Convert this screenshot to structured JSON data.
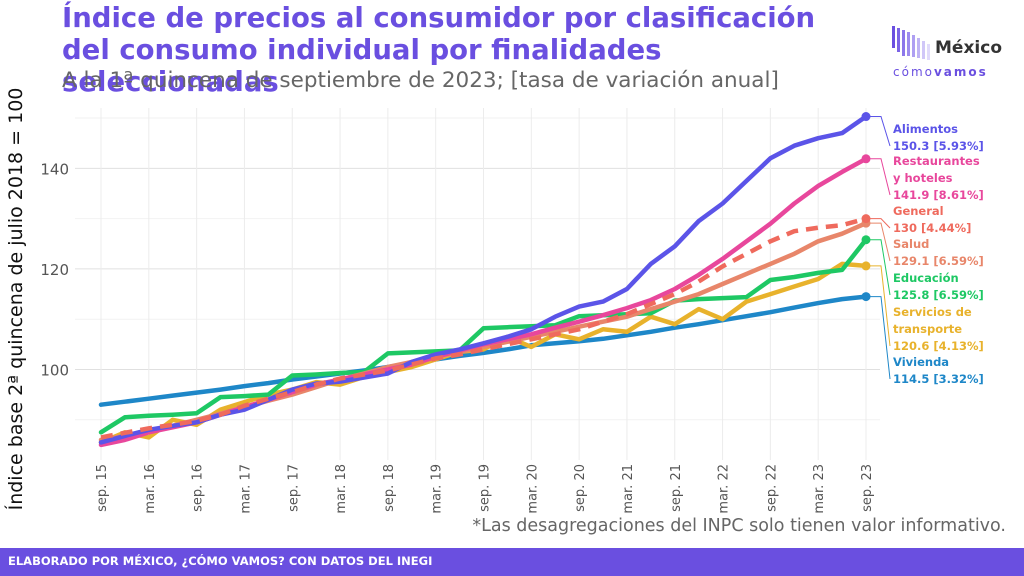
{
  "header": {
    "title": "Índice de precios al consumidor por clasificación del consumo individual por finalidades seleccionadas",
    "subtitle": "A la 1ª quincena de septiembre de 2023; [tasa de variación anual]"
  },
  "logo": {
    "name": "México",
    "sub_light": "cómo",
    "sub_bold": "vamos"
  },
  "footnote": "*Las desagregaciones del INPC solo tienen valor informativo.",
  "footer": {
    "text": "ELABORADO POR MÉXICO, ¿CÓMO VAMOS? CON DATOS DEL INEGI"
  },
  "chart_data": {
    "type": "line",
    "title": "Índice de precios al consumidor por clasificación del consumo individual por finalidades seleccionadas",
    "subtitle": "A la 1ª quincena de septiembre de 2023; [tasa de variación anual]",
    "ylabel": "Índice base 2ª quincena de julio 2018 = 100",
    "xlabel": "",
    "ylim": [
      82,
      152
    ],
    "yticks": [
      100,
      120,
      140
    ],
    "x_tick_labels": [
      "sep. 15",
      "mar. 16",
      "sep. 16",
      "mar. 17",
      "sep. 17",
      "mar. 18",
      "sep. 18",
      "mar. 19",
      "sep. 19",
      "mar. 20",
      "sep. 20",
      "mar. 21",
      "sep. 21",
      "mar. 22",
      "sep. 22",
      "mar. 23",
      "sep. 23"
    ],
    "grid": true,
    "legend": "end-labels-right",
    "x": [
      "sep. 15",
      "dic. 15",
      "mar. 16",
      "jun. 16",
      "sep. 16",
      "dic. 16",
      "mar. 17",
      "jun. 17",
      "sep. 17",
      "dic. 17",
      "mar. 18",
      "jun. 18",
      "sep. 18",
      "dic. 18",
      "mar. 19",
      "jun. 19",
      "sep. 19",
      "dic. 19",
      "mar. 20",
      "jun. 20",
      "sep. 20",
      "dic. 20",
      "mar. 21",
      "jun. 21",
      "sep. 21",
      "dic. 21",
      "mar. 22",
      "jun. 22",
      "sep. 22",
      "dic. 22",
      "mar. 23",
      "jun. 23",
      "sep. 23"
    ],
    "series": [
      {
        "name": "Alimentos",
        "end_label": "150.3 [5.93%]",
        "color": "#5b54e8",
        "dashed": false,
        "values": [
          85.5,
          86.8,
          88.0,
          88.8,
          89.5,
          91.0,
          92.0,
          94.0,
          96.0,
          97.2,
          97.6,
          98.4,
          99.2,
          101.5,
          103.0,
          104.0,
          105.2,
          106.5,
          108.0,
          110.5,
          112.5,
          113.5,
          116.0,
          121.0,
          124.5,
          129.5,
          133.0,
          137.5,
          142.0,
          144.5,
          146.0,
          147.0,
          150.3
        ]
      },
      {
        "name": "Restaurantes y hoteles",
        "end_label": "141.9 [8.61%]",
        "color": "#e8479c",
        "dashed": false,
        "values": [
          85.0,
          86.0,
          87.5,
          88.5,
          89.5,
          91.0,
          92.5,
          94.0,
          95.5,
          97.0,
          98.0,
          99.0,
          100.0,
          101.0,
          102.5,
          103.8,
          105.0,
          106.0,
          107.0,
          108.3,
          109.5,
          110.8,
          112.2,
          113.8,
          116.0,
          118.8,
          122.0,
          125.5,
          129.0,
          133.0,
          136.5,
          139.3,
          141.9
        ]
      },
      {
        "name": "General",
        "end_label": "130 [4.44%]",
        "color": "#ef6a5d",
        "dashed": true,
        "values": [
          86.5,
          87.4,
          88.3,
          89.0,
          89.8,
          91.0,
          92.8,
          94.2,
          95.5,
          97.0,
          98.2,
          99.0,
          99.8,
          101.0,
          102.2,
          103.0,
          104.0,
          105.0,
          106.0,
          107.0,
          108.0,
          109.5,
          111.0,
          113.0,
          115.0,
          117.5,
          120.5,
          123.0,
          125.5,
          127.5,
          128.2,
          128.7,
          130.0
        ]
      },
      {
        "name": "Salud",
        "end_label": "129.1 [6.59%]",
        "color": "#e8866a",
        "dashed": false,
        "values": [
          86.0,
          86.8,
          87.8,
          88.8,
          90.0,
          91.2,
          92.5,
          93.8,
          95.0,
          96.5,
          98.0,
          99.2,
          100.5,
          101.5,
          102.5,
          103.5,
          104.5,
          105.5,
          106.5,
          107.5,
          108.5,
          109.5,
          110.5,
          112.0,
          113.5,
          115.0,
          117.0,
          119.0,
          121.0,
          123.0,
          125.5,
          127.0,
          129.1
        ]
      },
      {
        "name": "Educación",
        "end_label": "125.8 [6.59%]",
        "color": "#1ec864",
        "dashed": false,
        "values": [
          87.5,
          90.5,
          90.8,
          91.0,
          91.3,
          94.5,
          94.7,
          95.0,
          98.8,
          99.0,
          99.3,
          99.5,
          103.2,
          103.4,
          103.6,
          103.8,
          108.2,
          108.4,
          108.6,
          108.8,
          110.6,
          110.8,
          111.0,
          111.2,
          113.7,
          114.0,
          114.2,
          114.4,
          117.8,
          118.4,
          119.2,
          119.8,
          125.8
        ]
      },
      {
        "name": "Servicios de transporte",
        "end_label": "120.6 [4.13%]",
        "color": "#e8b22c",
        "dashed": false,
        "values": [
          85.5,
          87.5,
          86.5,
          90.0,
          89.0,
          92.0,
          93.5,
          95.0,
          96.0,
          97.5,
          97.0,
          98.5,
          99.5,
          100.5,
          102.0,
          103.5,
          104.0,
          106.5,
          104.5,
          107.0,
          106.0,
          108.0,
          107.5,
          110.5,
          109.0,
          112.0,
          110.0,
          113.5,
          115.0,
          116.5,
          118.0,
          121.0,
          120.6
        ]
      },
      {
        "name": "Vivienda",
        "end_label": "114.5 [3.32%]",
        "color": "#1e87c8",
        "dashed": false,
        "values": [
          93.0,
          93.6,
          94.2,
          94.8,
          95.4,
          96.0,
          96.7,
          97.3,
          98.0,
          98.6,
          99.2,
          99.8,
          100.5,
          101.2,
          102.0,
          102.7,
          103.3,
          104.0,
          104.8,
          105.2,
          105.6,
          106.1,
          106.8,
          107.5,
          108.3,
          109.0,
          109.8,
          110.6,
          111.4,
          112.3,
          113.2,
          114.0,
          114.5
        ]
      }
    ]
  }
}
